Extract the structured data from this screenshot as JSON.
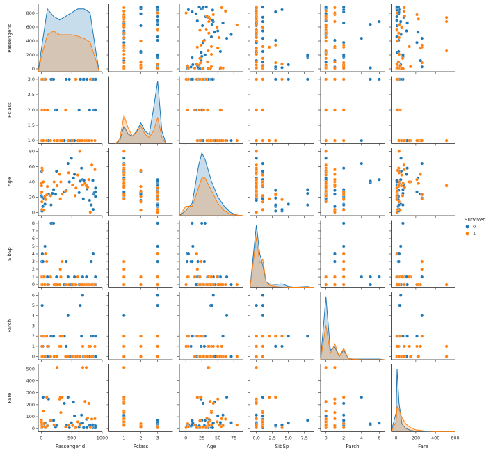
{
  "chart_data": {
    "type": "pairplot",
    "variables": [
      "PassengerId",
      "Pclass",
      "Age",
      "SibSp",
      "Parch",
      "Fare"
    ],
    "legend": {
      "title": "Survived",
      "position": "right"
    },
    "axes": [
      {
        "xlim": [
          -50,
          1000
        ],
        "xticks": [
          0,
          500,
          1000
        ],
        "ylim": [
          -40,
          930
        ],
        "yticks": [
          0,
          200,
          400,
          600,
          800
        ],
        "kde_x": [
          -50,
          0,
          100,
          200,
          300,
          400,
          500,
          600,
          700,
          800,
          900,
          950
        ]
      },
      {
        "xlim": [
          0.1,
          3.9
        ],
        "xticks": [
          1,
          2,
          3
        ],
        "ylim": [
          0.9,
          3.1
        ],
        "yticks": [
          {
            "value": 1,
            "label": "1.0"
          },
          {
            "value": 1.5,
            "label": "1.5"
          },
          {
            "value": 2,
            "label": "2.0"
          },
          {
            "value": 2.5,
            "label": "2.5"
          },
          {
            "value": 3,
            "label": "3.0"
          }
        ],
        "kde_x": [
          0.5,
          0.75,
          1,
          1.25,
          1.5,
          1.75,
          2,
          2.25,
          2.5,
          2.75,
          3,
          3.25,
          3.5
        ]
      },
      {
        "xlim": [
          -10,
          90
        ],
        "xticks": [
          0,
          25,
          50,
          75
        ],
        "ylim": [
          -4,
          84
        ],
        "yticks": [
          0,
          20,
          40,
          60,
          80
        ],
        "kde_x": [
          -10,
          0,
          10,
          20,
          25,
          30,
          40,
          50,
          60,
          70,
          80,
          90
        ]
      },
      {
        "xlim": [
          -1,
          9
        ],
        "xticks": [
          {
            "value": 0,
            "label": "0.0"
          },
          {
            "value": 2.5,
            "label": "2.5"
          },
          {
            "value": 5,
            "label": "5.0"
          },
          {
            "value": 7.5,
            "label": "7.5"
          }
        ],
        "ylim": [
          -0.4,
          8.4
        ],
        "yticks": [
          0,
          1,
          2,
          3,
          4,
          5,
          6,
          7,
          8
        ],
        "kde_x": [
          -1,
          0,
          0.5,
          1,
          1.5,
          2,
          3,
          4,
          5,
          6,
          8,
          9
        ]
      },
      {
        "xlim": [
          -0.6,
          6.6
        ],
        "xticks": [
          0,
          2,
          4,
          6
        ],
        "ylim": [
          -0.3,
          6.3
        ],
        "yticks": [
          0,
          1,
          2,
          3,
          4,
          5,
          6
        ],
        "kde_x": [
          -0.6,
          0,
          0.5,
          1,
          1.5,
          2,
          2.5,
          3,
          4,
          5,
          6,
          6.6
        ]
      },
      {
        "xlim": [
          -50,
          600
        ],
        "xticks": [
          0,
          200,
          400,
          600
        ],
        "ylim": [
          -25,
          540
        ],
        "yticks": [
          0,
          100,
          200,
          300,
          400,
          500
        ],
        "kde_x": [
          -50,
          0,
          10,
          30,
          60,
          100,
          150,
          200,
          250,
          300,
          400,
          500,
          600
        ]
      }
    ],
    "series": [
      {
        "name": "0",
        "color": "#1f77b4",
        "values": [
          [
            1,
            5,
            7,
            8,
            13,
            14,
            17,
            25,
            28,
            50,
            60,
            100,
            119,
            160,
            181,
            202,
            235,
            250,
            378,
            410,
            439,
            460,
            494,
            528,
            545,
            620,
            639,
            660,
            679,
            689,
            700,
            742,
            750,
            792,
            820,
            846,
            851,
            865,
            871,
            887,
            889,
            891
          ],
          [
            3,
            3,
            1,
            3,
            3,
            3,
            3,
            3,
            1,
            3,
            3,
            2,
            1,
            3,
            3,
            3,
            2,
            2,
            1,
            3,
            1,
            3,
            1,
            1,
            1,
            2,
            3,
            1,
            3,
            3,
            3,
            1,
            3,
            2,
            3,
            3,
            3,
            2,
            3,
            2,
            3,
            3
          ],
          [
            22,
            35,
            54,
            2,
            20,
            39,
            2,
            8,
            19,
            18,
            11,
            34,
            24,
            10,
            25,
            30,
            24,
            54,
            27,
            29,
            64,
            40,
            71,
            45,
            50,
            26,
            41,
            58,
            43,
            18,
            42,
            36,
            31,
            16,
            10,
            42,
            4,
            24,
            26,
            27,
            21,
            32
          ],
          [
            1,
            0,
            0,
            3,
            0,
            1,
            4,
            3,
            3,
            1,
            5,
            1,
            0,
            8,
            8,
            8,
            0,
            1,
            0,
            3,
            1,
            0,
            0,
            0,
            1,
            0,
            0,
            0,
            1,
            0,
            0,
            1,
            0,
            0,
            3,
            0,
            4,
            0,
            0,
            0,
            1,
            0
          ],
          [
            0,
            0,
            0,
            1,
            0,
            5,
            1,
            1,
            2,
            0,
            2,
            0,
            1,
            2,
            2,
            2,
            0,
            0,
            2,
            1,
            4,
            0,
            0,
            0,
            0,
            0,
            5,
            2,
            6,
            0,
            0,
            0,
            0,
            0,
            2,
            0,
            2,
            0,
            0,
            0,
            2,
            0
          ],
          [
            7.25,
            8.05,
            51.86,
            21.08,
            8.05,
            31.28,
            29.13,
            21.08,
            263,
            17.8,
            46.9,
            26,
            247.52,
            69.55,
            69.55,
            69.55,
            10.5,
            26,
            211.5,
            25.47,
            263,
            7.75,
            49.5,
            221.78,
            106.43,
            10.5,
            39.69,
            113.28,
            46.9,
            7.8,
            7.65,
            78.85,
            7.75,
            26,
            27.9,
            7.55,
            31.27,
            13,
            7.9,
            13,
            23.45,
            7.75
          ]
        ],
        "kde": [
          [
            0,
            0.3,
            0.85,
            0.75,
            0.7,
            0.75,
            0.8,
            0.85,
            0.85,
            0.8,
            0.25,
            0
          ],
          [
            0,
            0.05,
            0.28,
            0.15,
            0.12,
            0.2,
            0.33,
            0.2,
            0.15,
            0.55,
            1.0,
            0.2,
            0
          ],
          [
            0,
            0.08,
            0.2,
            0.8,
            1.0,
            0.9,
            0.55,
            0.3,
            0.15,
            0.05,
            0.01,
            0
          ],
          [
            0,
            1.0,
            0.55,
            0.35,
            0.1,
            0.06,
            0.05,
            0.06,
            0.02,
            0.01,
            0.02,
            0
          ],
          [
            0,
            1.0,
            0.15,
            0.2,
            0.05,
            0.15,
            0.02,
            0.01,
            0.01,
            0.01,
            0.01,
            0
          ],
          [
            0,
            0.3,
            1.0,
            0.45,
            0.12,
            0.05,
            0.02,
            0.01,
            0.01,
            0,
            0,
            0,
            0
          ]
        ]
      },
      {
        "name": "1",
        "color": "#ff7f0e",
        "values": [
          [
            2,
            3,
            4,
            9,
            10,
            11,
            12,
            16,
            32,
            44,
            57,
            69,
            89,
            99,
            152,
            210,
            259,
            300,
            312,
            320,
            342,
            400,
            450,
            513,
            555,
            570,
            600,
            631,
            680,
            717,
            738,
            760,
            780,
            804,
            830,
            880
          ],
          [
            1,
            3,
            1,
            3,
            2,
            3,
            1,
            2,
            1,
            2,
            2,
            3,
            1,
            2,
            1,
            1,
            1,
            1,
            1,
            1,
            1,
            2,
            1,
            1,
            3,
            3,
            1,
            1,
            1,
            1,
            1,
            1,
            1,
            3,
            1,
            1
          ],
          [
            38,
            26,
            35,
            27,
            14,
            4,
            58,
            55,
            40,
            3,
            21,
            17,
            23,
            34,
            22,
            40,
            35,
            50,
            18,
            40,
            24,
            28,
            52,
            36,
            22,
            32,
            49,
            80,
            36,
            38,
            35,
            33,
            43,
            0.42,
            62,
            56
          ],
          [
            1,
            0,
            1,
            0,
            1,
            1,
            0,
            0,
            1,
            1,
            0,
            4,
            3,
            0,
            1,
            0,
            0,
            0,
            2,
            1,
            3,
            0,
            0,
            0,
            0,
            0,
            1,
            0,
            0,
            0,
            0,
            0,
            0,
            0,
            0,
            0
          ],
          [
            0,
            0,
            0,
            2,
            0,
            1,
            0,
            0,
            0,
            2,
            0,
            2,
            2,
            1,
            0,
            0,
            0,
            1,
            2,
            1,
            2,
            0,
            0,
            0,
            0,
            0,
            0,
            0,
            1,
            0,
            0,
            0,
            1,
            1,
            0,
            1
          ],
          [
            71.28,
            7.93,
            53.1,
            11.13,
            30.07,
            16.7,
            26.55,
            16,
            146.52,
            41.58,
            10.5,
            7.93,
            263,
            23,
            66.6,
            31,
            512.33,
            247.52,
            262.38,
            134.5,
            263,
            12.65,
            30.5,
            26.29,
            7.78,
            7.85,
            56.93,
            30,
            512.33,
            227.53,
            512.33,
            86.5,
            211.34,
            8.52,
            80,
            83.16
          ]
        ],
        "kde": [
          [
            0,
            0.2,
            0.5,
            0.55,
            0.5,
            0.5,
            0.5,
            0.48,
            0.45,
            0.4,
            0.15,
            0
          ],
          [
            0,
            0.08,
            0.45,
            0.25,
            0.12,
            0.18,
            0.28,
            0.15,
            0.1,
            0.2,
            0.42,
            0.1,
            0
          ],
          [
            0,
            0.15,
            0.15,
            0.45,
            0.6,
            0.6,
            0.4,
            0.2,
            0.08,
            0.02,
            0.01,
            0
          ],
          [
            0,
            0.8,
            0.4,
            0.45,
            0.1,
            0.04,
            0.02,
            0.01,
            0,
            0,
            0,
            0
          ],
          [
            0,
            0.55,
            0.1,
            0.25,
            0.05,
            0.18,
            0.02,
            0.01,
            0,
            0,
            0,
            0
          ],
          [
            0,
            0.15,
            0.4,
            0.35,
            0.22,
            0.12,
            0.06,
            0.03,
            0.02,
            0.01,
            0,
            0.003,
            0
          ]
        ]
      }
    ]
  }
}
